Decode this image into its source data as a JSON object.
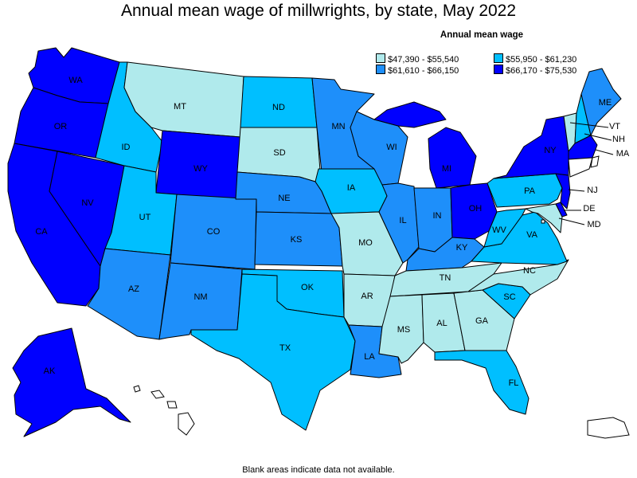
{
  "title": "Annual mean wage of millwrights, by state, May 2022",
  "legend": {
    "title": "Annual mean wage",
    "items": [
      {
        "label": "$47,390 - $55,540",
        "color": "#b0eaec"
      },
      {
        "label": "$55,950 - $61,230",
        "color": "#00bfff"
      },
      {
        "label": "$61,610 - $66,150",
        "color": "#1e8ffa"
      },
      {
        "label": "$66,170 - $75,530",
        "color": "#0000ff"
      }
    ]
  },
  "footnote": "Blank areas indicate data not available.",
  "states": {
    "WA": "$66,170 - $75,530",
    "OR": "$66,170 - $75,530",
    "CA": "$66,170 - $75,530",
    "NV": "$66,170 - $75,530",
    "ID": "$55,950 - $61,230",
    "MT": "$47,390 - $55,540",
    "WY": "$66,170 - $75,530",
    "UT": "$55,950 - $61,230",
    "AZ": "$61,610 - $66,150",
    "CO": "$61,610 - $66,150",
    "NM": "$61,610 - $66,150",
    "ND": "$55,950 - $61,230",
    "SD": "$47,390 - $55,540",
    "NE": "$61,610 - $66,150",
    "KS": "$61,610 - $66,150",
    "OK": "$55,950 - $61,230",
    "TX": "$55,950 - $61,230",
    "MN": "$61,610 - $66,150",
    "IA": "$55,950 - $61,230",
    "MO": "$47,390 - $55,540",
    "AR": "$47,390 - $55,540",
    "LA": "$61,610 - $66,150",
    "WI": "$61,610 - $66,150",
    "IL": "$61,610 - $66,150",
    "MI": "$66,170 - $75,530",
    "IN": "$61,610 - $66,150",
    "OH": "$66,170 - $75,530",
    "KY": "$61,610 - $66,150",
    "TN": "$47,390 - $55,540",
    "MS": "$47,390 - $55,540",
    "AL": "$47,390 - $55,540",
    "GA": "$47,390 - $55,540",
    "FL": "$55,950 - $61,230",
    "SC": "$55,950 - $61,230",
    "NC": "$47,390 - $55,540",
    "VA": "$55,950 - $61,230",
    "WV": "$55,950 - $61,230",
    "PA": "$55,950 - $61,230",
    "NY": "$66,170 - $75,530",
    "VT": "$47,390 - $55,540",
    "NH": "$55,950 - $61,230",
    "ME": "$61,610 - $66,150",
    "MA": "$66,170 - $75,530",
    "NJ": "$66,170 - $75,530",
    "DE": "$66,170 - $75,530",
    "MD": "$47,390 - $55,540",
    "AK": "$66,170 - $75,530"
  },
  "labels": [
    "WA",
    "OR",
    "CA",
    "NV",
    "ID",
    "MT",
    "WY",
    "UT",
    "AZ",
    "CO",
    "NM",
    "ND",
    "SD",
    "NE",
    "KS",
    "OK",
    "TX",
    "MN",
    "IA",
    "MO",
    "AR",
    "LA",
    "WI",
    "IL",
    "MI",
    "IN",
    "OH",
    "KY",
    "TN",
    "MS",
    "AL",
    "GA",
    "FL",
    "SC",
    "NC",
    "VA",
    "WV",
    "PA",
    "NY",
    "VT",
    "NH",
    "ME",
    "MA",
    "NJ",
    "DE",
    "MD",
    "AK"
  ]
}
